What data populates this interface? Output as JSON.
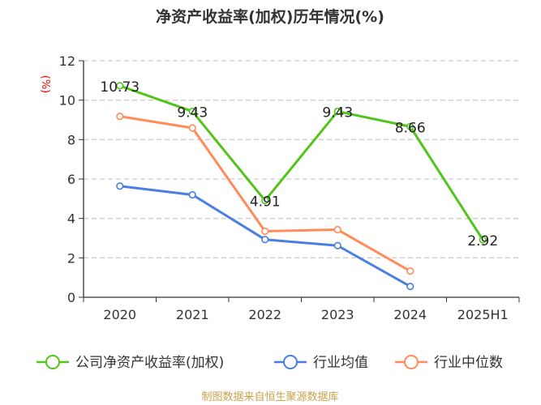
{
  "chart_data": {
    "type": "line",
    "title": "净资产收益率(加权)历年情况(%)",
    "ylabel": "(%)",
    "xlabel": "",
    "categories": [
      "2020",
      "2021",
      "2022",
      "2023",
      "2024",
      "2025H1"
    ],
    "ylim": [
      0,
      12
    ],
    "yticks": [
      0,
      2,
      4,
      6,
      8,
      10,
      12
    ],
    "grid": true,
    "legend_position": "bottom",
    "series": [
      {
        "name": "公司净资产收益率(加权)",
        "color": "#52c41a",
        "values": [
          10.73,
          9.43,
          4.91,
          9.43,
          8.66,
          2.92
        ],
        "labels": [
          "10.73",
          "9.43",
          "4.91",
          "9.43",
          "8.66",
          "2.92"
        ]
      },
      {
        "name": "行业均值",
        "color": "#4a7ee0",
        "values": [
          5.64,
          5.2,
          2.93,
          2.62,
          0.55,
          null
        ]
      },
      {
        "name": "行业中位数",
        "color": "#ff8c5a",
        "values": [
          9.18,
          8.59,
          3.35,
          3.43,
          1.33,
          null
        ]
      }
    ],
    "source": "制图数据来自恒生聚源数据库"
  }
}
